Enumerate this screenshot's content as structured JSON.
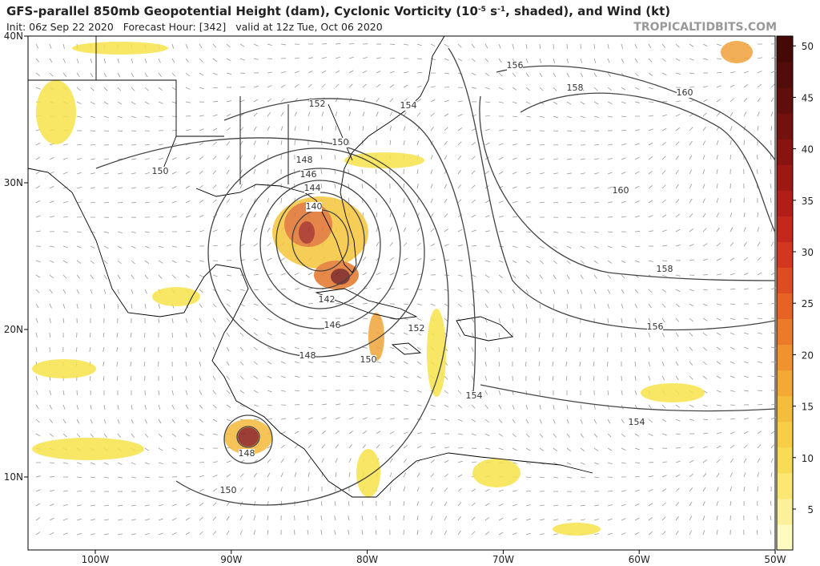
{
  "header": {
    "title_parts": [
      "GFS-parallel 850mb Geopotential Height (dam), Cyclonic Vorticity (10",
      "-5",
      " s",
      "-1",
      ", shaded), and Wind (kt)"
    ],
    "subtitle": "Init: 06z Sep 22 2020   Forecast Hour: [342]   valid at 12z Tue, Oct 06 2020",
    "source": "TROPICALTIDBITS.COM"
  },
  "map": {
    "lat_labels": [
      "40N",
      "30N",
      "20N",
      "10N"
    ],
    "lon_labels": [
      "100W",
      "90W",
      "80W",
      "70W",
      "60W",
      "50W"
    ],
    "contour_labels": [
      156,
      158,
      160,
      152,
      154,
      150,
      150,
      148,
      146,
      144,
      160,
      140,
      158,
      142,
      146,
      152,
      156,
      148,
      150,
      154,
      154,
      148,
      150
    ],
    "colorbar_ticks": [
      5,
      10,
      15,
      20,
      25,
      30,
      35,
      40,
      45,
      50
    ]
  }
}
